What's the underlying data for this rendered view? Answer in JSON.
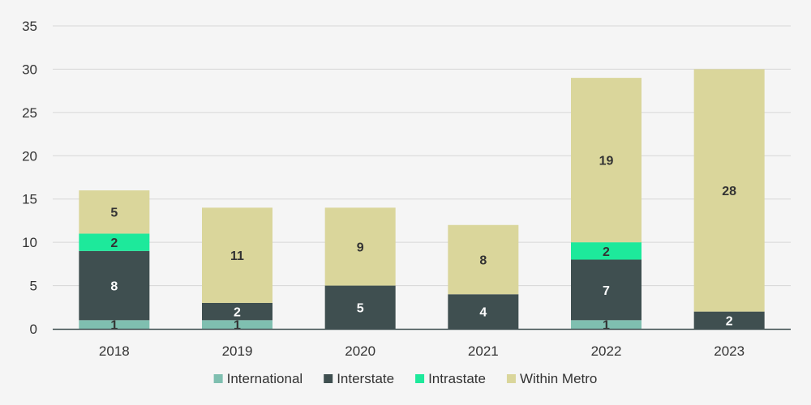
{
  "chart_data": {
    "type": "bar",
    "stacked": true,
    "title": "",
    "xlabel": "",
    "ylabel": "",
    "categories": [
      "2018",
      "2019",
      "2020",
      "2021",
      "2022",
      "2023"
    ],
    "ylim": [
      0,
      35
    ],
    "yticks": [
      "0",
      "5",
      "10",
      "15",
      "20",
      "25",
      "30",
      "35"
    ],
    "grid": true,
    "legend_position": "bottom",
    "series": [
      {
        "name": "International",
        "color": "#7fbfb0",
        "label_color": "#333333",
        "values": [
          1,
          1,
          0,
          0,
          1,
          0
        ]
      },
      {
        "name": "Interstate",
        "color": "#3f4f50",
        "label_color": "#ffffff",
        "values": [
          8,
          2,
          5,
          4,
          7,
          2
        ]
      },
      {
        "name": "Intrastate",
        "color": "#1de99b",
        "label_color": "#333333",
        "values": [
          2,
          0,
          0,
          0,
          2,
          0
        ]
      },
      {
        "name": "Within Metro",
        "color": "#dad69b",
        "label_color": "#333333",
        "values": [
          5,
          11,
          9,
          8,
          19,
          28
        ]
      }
    ]
  }
}
